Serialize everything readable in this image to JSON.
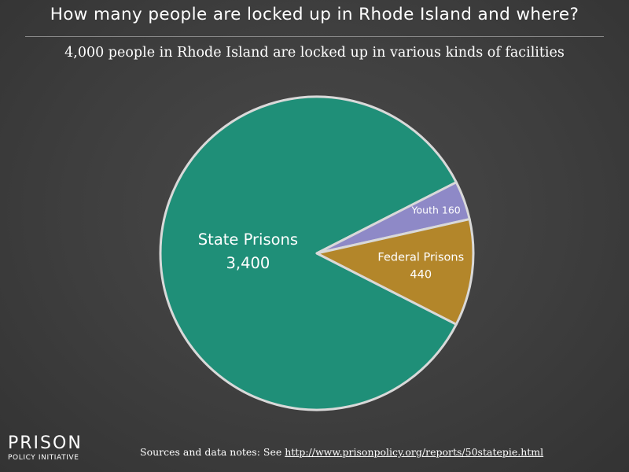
{
  "header": {
    "title": "How many people are locked up in Rhode Island and where?",
    "subtitle": "4,000 people in Rhode Island are locked up in various kinds of facilities"
  },
  "chart_data": {
    "type": "pie",
    "title": "How many people are locked up in Rhode Island and where?",
    "subtitle": "4,000 people in Rhode Island are locked up in various kinds of facilities",
    "slices": [
      {
        "label": "State Prisons",
        "value": 3400,
        "value_label": "3,400",
        "color": "#1f8f78"
      },
      {
        "label": "Youth",
        "value": 160,
        "value_label": "160",
        "color": "#8e89c7"
      },
      {
        "label": "Federal Prisons",
        "value": 440,
        "value_label": "440",
        "color": "#b3862a"
      }
    ],
    "border_color": "#d9d9d9"
  },
  "footer": {
    "logo_main": "PRISON",
    "logo_sub": "POLICY INITIATIVE",
    "sources_prefix": "Sources and data notes: See ",
    "sources_link": "http://www.prisonpolicy.org/reports/50statepie.html"
  }
}
